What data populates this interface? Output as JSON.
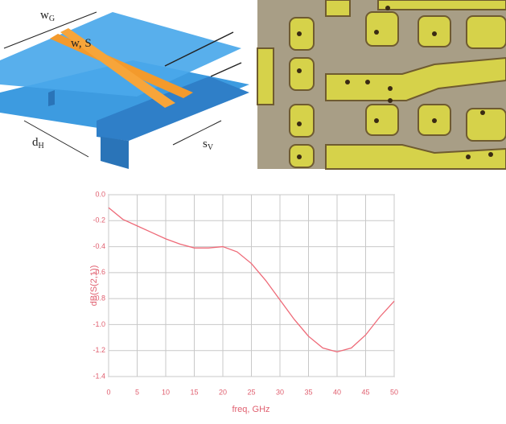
{
  "diagram": {
    "labels": [
      {
        "base": "w",
        "sub": "G"
      },
      {
        "base": "w, S",
        "sub": ""
      },
      {
        "base": "d",
        "sub": "H"
      },
      {
        "base": "s",
        "sub": "V"
      }
    ]
  },
  "chart_data": {
    "type": "line",
    "x_label": "freq, GHz",
    "y_label": "dB(S(2,1))",
    "x": [
      0,
      2.5,
      5,
      7.5,
      10,
      12.5,
      15,
      17.5,
      20,
      22.5,
      25,
      27.5,
      30,
      32.5,
      35,
      37.5,
      40,
      42.5,
      45,
      47.5,
      50
    ],
    "series": [
      {
        "color": "#ee6a78",
        "values": [
          -0.1,
          -0.19,
          -0.24,
          -0.29,
          -0.34,
          -0.38,
          -0.41,
          -0.41,
          -0.4,
          -0.44,
          -0.53,
          -0.66,
          -0.81,
          -0.96,
          -1.09,
          -1.18,
          -1.21,
          -1.18,
          -1.08,
          -0.94,
          -0.82
        ]
      }
    ],
    "xlim": [
      0,
      50
    ],
    "xticks": [
      0,
      5,
      10,
      15,
      20,
      25,
      30,
      35,
      40,
      45,
      50
    ],
    "ylim": [
      -1.4,
      0.0
    ],
    "yticks": [
      {
        "value": 0.0,
        "label": "0.0"
      },
      -0.2,
      -0.4,
      -0.6,
      -0.8,
      {
        "value": -1.0,
        "label": "-1.0"
      },
      -1.2,
      -1.4
    ],
    "grid": true
  }
}
